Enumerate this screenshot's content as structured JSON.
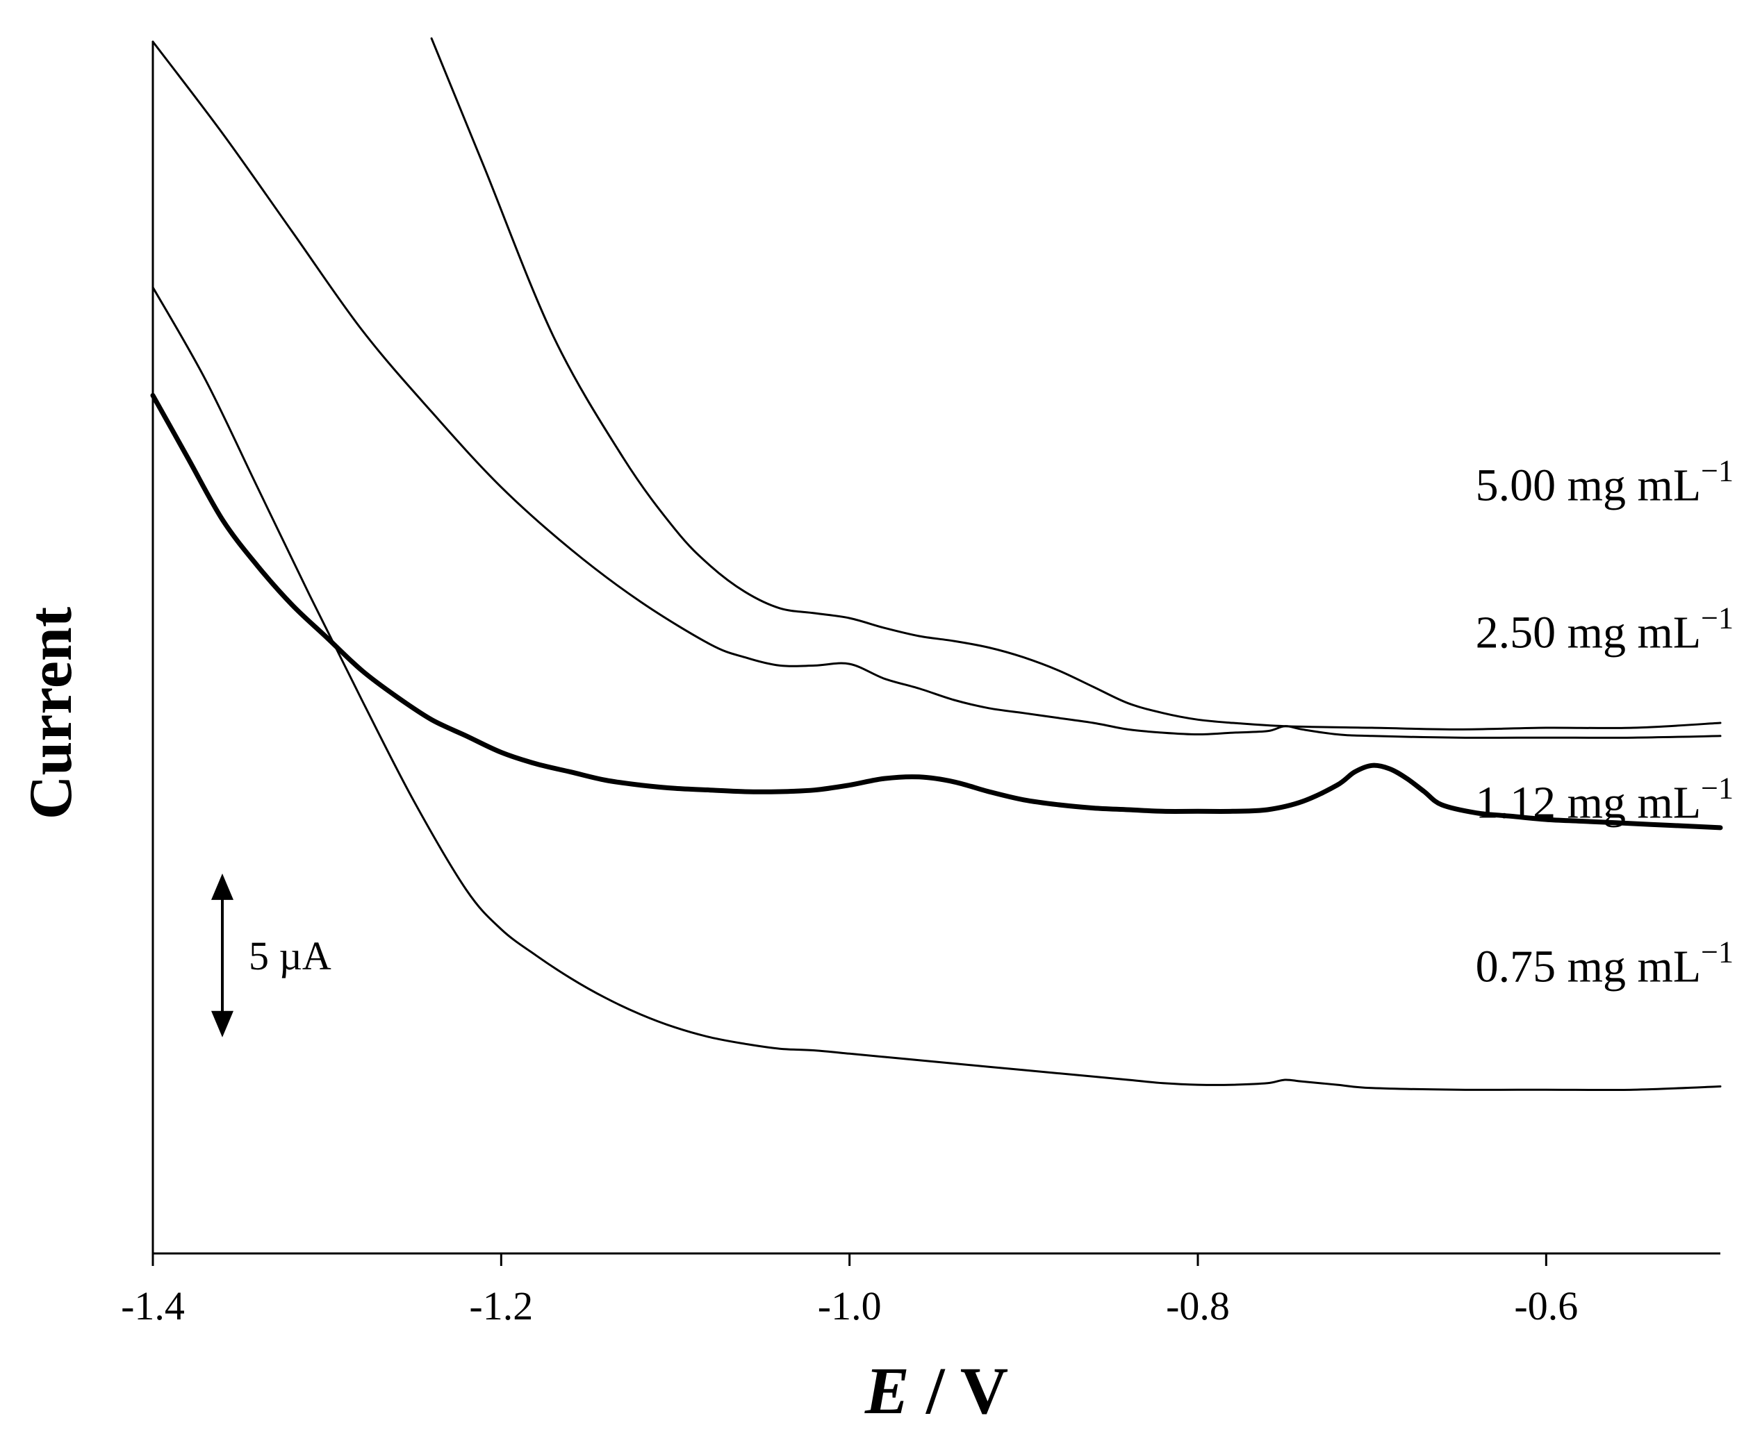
{
  "chart_data": {
    "type": "line",
    "title": "",
    "xlabel_symbol": "E",
    "xlabel_unit": " / V",
    "ylabel": "Current",
    "xlim": [
      -1.4,
      -0.5
    ],
    "x_ticks": [
      "-1.4",
      "-1.2",
      "-1.0",
      "-0.8",
      "-0.6"
    ],
    "x_tick_values": [
      -1.4,
      -1.2,
      -1.0,
      -0.8,
      -0.6
    ],
    "ylim": [
      -7.5,
      29.5
    ],
    "y_unit_note": "arbitrary offset current (µA), curves vertically offset",
    "scale_bar": {
      "label": "5 µA",
      "value": 5,
      "center_y": 1.6
    },
    "series": [
      {
        "name": "5.00 mg mL",
        "label_main": "5.00 mg mL",
        "label_sup": "−1",
        "label_y": 15.5,
        "bold": false,
        "x": [
          -1.24,
          -1.21,
          -1.17,
          -1.13,
          -1.1,
          -1.08,
          -1.06,
          -1.04,
          -1.02,
          -1.0,
          -0.98,
          -0.96,
          -0.94,
          -0.92,
          -0.9,
          -0.88,
          -0.86,
          -0.84,
          -0.82,
          -0.8,
          -0.78,
          -0.75,
          -0.7,
          -0.65,
          -0.6,
          -0.55,
          -0.5
        ],
        "y": [
          29.6,
          25.7,
          20.5,
          16.8,
          14.6,
          13.5,
          12.7,
          12.2,
          12.05,
          11.9,
          11.6,
          11.35,
          11.2,
          11.0,
          10.7,
          10.3,
          9.8,
          9.3,
          9.0,
          8.8,
          8.7,
          8.6,
          8.55,
          8.5,
          8.55,
          8.55,
          8.7
        ]
      },
      {
        "name": "2.50 mg mL",
        "label_main": "2.50 mg mL",
        "label_sup": "−1",
        "label_y": 11.0,
        "bold": false,
        "x": [
          -1.4,
          -1.36,
          -1.32,
          -1.28,
          -1.24,
          -1.2,
          -1.16,
          -1.12,
          -1.08,
          -1.06,
          -1.04,
          -1.02,
          -1.0,
          -0.98,
          -0.96,
          -0.94,
          -0.92,
          -0.9,
          -0.88,
          -0.86,
          -0.84,
          -0.82,
          -0.8,
          -0.78,
          -0.76,
          -0.75,
          -0.74,
          -0.72,
          -0.7,
          -0.65,
          -0.6,
          -0.55,
          -0.5
        ],
        "y": [
          29.5,
          26.7,
          23.7,
          20.7,
          18.2,
          15.9,
          14.0,
          12.4,
          11.1,
          10.7,
          10.45,
          10.45,
          10.5,
          10.05,
          9.75,
          9.4,
          9.15,
          9.0,
          8.85,
          8.7,
          8.5,
          8.4,
          8.35,
          8.4,
          8.45,
          8.6,
          8.5,
          8.35,
          8.3,
          8.25,
          8.25,
          8.25,
          8.3
        ]
      },
      {
        "name": "1.12 mg mL",
        "label_main": "1.12 mg mL",
        "label_sup": "−1",
        "label_y": 5.8,
        "bold": true,
        "x": [
          -1.4,
          -1.38,
          -1.36,
          -1.34,
          -1.32,
          -1.3,
          -1.28,
          -1.26,
          -1.24,
          -1.22,
          -1.2,
          -1.18,
          -1.16,
          -1.14,
          -1.12,
          -1.1,
          -1.08,
          -1.06,
          -1.04,
          -1.02,
          -1.0,
          -0.98,
          -0.96,
          -0.94,
          -0.92,
          -0.9,
          -0.88,
          -0.86,
          -0.84,
          -0.82,
          -0.8,
          -0.78,
          -0.76,
          -0.74,
          -0.72,
          -0.71,
          -0.7,
          -0.69,
          -0.68,
          -0.67,
          -0.66,
          -0.64,
          -0.62,
          -0.6,
          -0.58,
          -0.56,
          -0.54,
          -0.52,
          -0.5
        ],
        "y": [
          18.7,
          16.8,
          14.9,
          13.5,
          12.3,
          11.3,
          10.3,
          9.5,
          8.8,
          8.3,
          7.8,
          7.45,
          7.2,
          6.95,
          6.8,
          6.7,
          6.65,
          6.6,
          6.6,
          6.65,
          6.8,
          7.0,
          7.05,
          6.9,
          6.6,
          6.35,
          6.2,
          6.1,
          6.05,
          6.0,
          6.0,
          6.0,
          6.05,
          6.3,
          6.8,
          7.2,
          7.4,
          7.3,
          7.0,
          6.6,
          6.2,
          5.95,
          5.85,
          5.75,
          5.7,
          5.65,
          5.6,
          5.55,
          5.5
        ]
      },
      {
        "name": "0.75 mg mL",
        "label_main": "0.75 mg mL",
        "label_sup": "−1",
        "label_y": 0.8,
        "bold": false,
        "x": [
          -1.4,
          -1.37,
          -1.34,
          -1.31,
          -1.28,
          -1.25,
          -1.22,
          -1.2,
          -1.18,
          -1.16,
          -1.14,
          -1.12,
          -1.1,
          -1.08,
          -1.06,
          -1.04,
          -1.02,
          -1.0,
          -0.98,
          -0.96,
          -0.94,
          -0.92,
          -0.9,
          -0.88,
          -0.86,
          -0.84,
          -0.82,
          -0.8,
          -0.78,
          -0.76,
          -0.75,
          -0.74,
          -0.72,
          -0.7,
          -0.65,
          -0.6,
          -0.55,
          -0.5
        ],
        "y": [
          22.0,
          19.2,
          15.9,
          12.6,
          9.4,
          6.3,
          3.6,
          2.4,
          1.6,
          0.9,
          0.3,
          -0.2,
          -0.6,
          -0.9,
          -1.1,
          -1.25,
          -1.3,
          -1.4,
          -1.5,
          -1.6,
          -1.7,
          -1.8,
          -1.9,
          -2.0,
          -2.1,
          -2.2,
          -2.3,
          -2.35,
          -2.35,
          -2.3,
          -2.2,
          -2.25,
          -2.35,
          -2.45,
          -2.5,
          -2.5,
          -2.5,
          -2.4
        ]
      }
    ]
  }
}
